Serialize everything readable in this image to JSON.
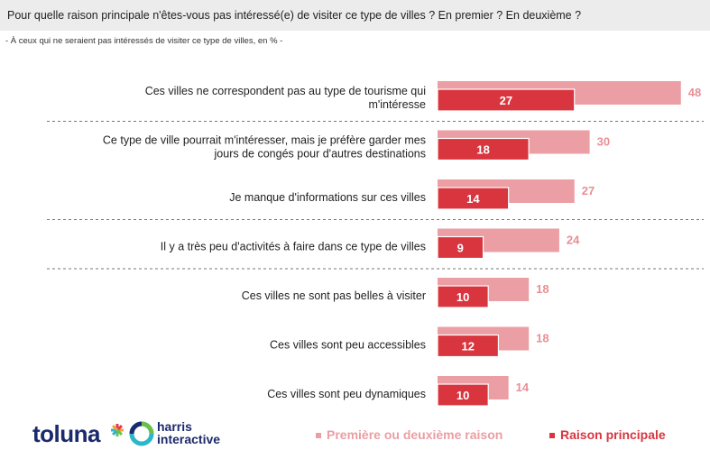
{
  "header": {
    "question_a": "Pour quelle raison principale ",
    "question_nete": "n'êtes",
    "question_b": "-vous pas intéressé(e) de visiter ce type de villes ? En premier ? En deuxième ?",
    "subtitle": "- À ceux qui ne seraient pas intéressés de visiter ce type de villes, en % -"
  },
  "chart_data": {
    "type": "bar",
    "orientation": "horizontal",
    "categories": [
      [
        "Ces villes ne correspondent pas au type de tourisme qui",
        "m'intéresse"
      ],
      [
        "Ce type de ville pourrait m'intéresser, mais je préfère garder mes",
        "jours de congés pour d'autres destinations"
      ],
      [
        "Je manque d'informations sur ces villes"
      ],
      [
        "Il y a très peu d'activités à faire dans ce type de villes"
      ],
      [
        "Ces villes ne sont pas belles à visiter"
      ],
      [
        "Ces villes sont peu accessibles"
      ],
      [
        "Ces villes sont peu dynamiques"
      ]
    ],
    "series": [
      {
        "name": "Première ou deuxième raison",
        "values": [
          48,
          30,
          27,
          24,
          18,
          18,
          14
        ],
        "color": "#eb9ea3"
      },
      {
        "name": "Raison principale",
        "values": [
          27,
          18,
          14,
          9,
          10,
          12,
          10
        ],
        "color": "#d9353f"
      }
    ],
    "separators_after": [
      0,
      2,
      3
    ],
    "grid": false,
    "legend_position": "bottom-right"
  },
  "logos": {
    "toluna": "toluna",
    "harris_line1": "harris",
    "harris_line2": "interactive"
  },
  "colors": {
    "brand_navy": "#1b2a6e",
    "accent_red": "#d9353f",
    "accent_pink": "#eb9ea3",
    "label_pink": "#e88f95",
    "asterisk_colors": [
      "#e23a4c",
      "#2bb6c9",
      "#f2a13a",
      "#6cc04a"
    ]
  }
}
